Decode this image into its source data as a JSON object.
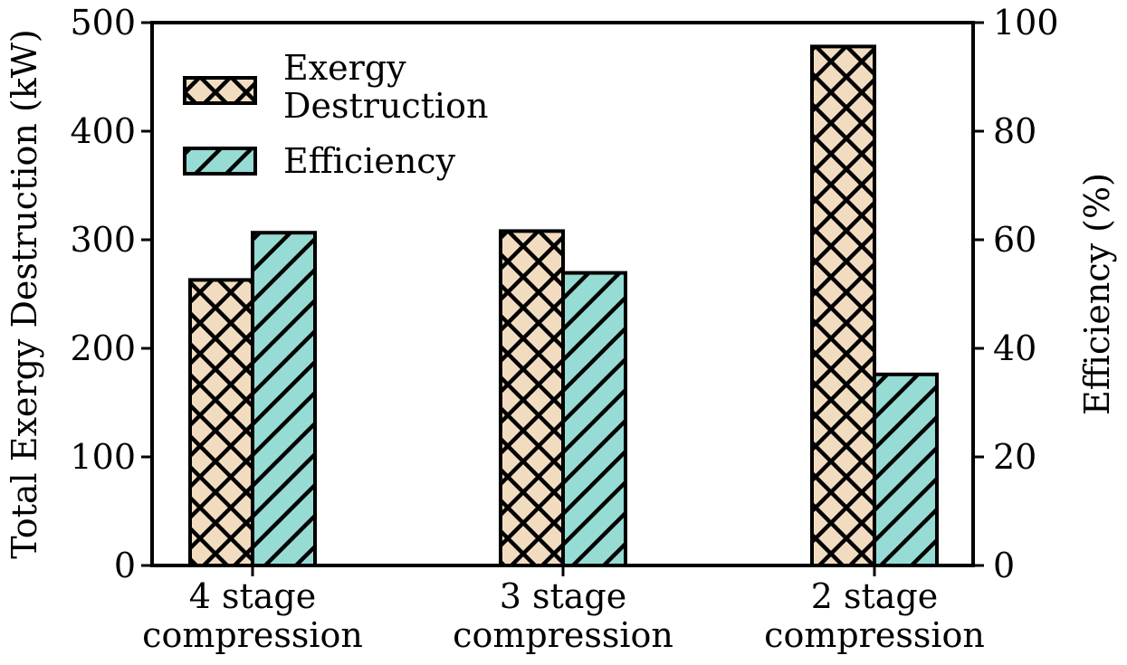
{
  "chart_data": {
    "type": "bar",
    "categories": [
      [
        "4 stage",
        "compression"
      ],
      [
        "3 stage",
        "compression"
      ],
      [
        "2 stage",
        "compression"
      ]
    ],
    "series": [
      {
        "name": [
          "Exergy",
          "Destruction"
        ],
        "axis": "left",
        "values": [
          263,
          308,
          478
        ],
        "color": "#f2dcc0",
        "hatch": "cross"
      },
      {
        "name": [
          "Efficiency"
        ],
        "axis": "right",
        "values": [
          61.3,
          53.9,
          35.2
        ],
        "color": "#96dbd4",
        "hatch": "diagonal"
      }
    ],
    "ylabel": "Total Exergy Destruction (kW)",
    "ylim": [
      0,
      500
    ],
    "yticks": [
      "0",
      "100",
      "200",
      "300",
      "400",
      "500"
    ],
    "y2label": "Efficiency (%)",
    "y2lim": [
      0,
      100
    ],
    "y2ticks": [
      "0",
      "20",
      "40",
      "60",
      "80",
      "100"
    ],
    "legend_position": "top-left",
    "grid": false
  }
}
